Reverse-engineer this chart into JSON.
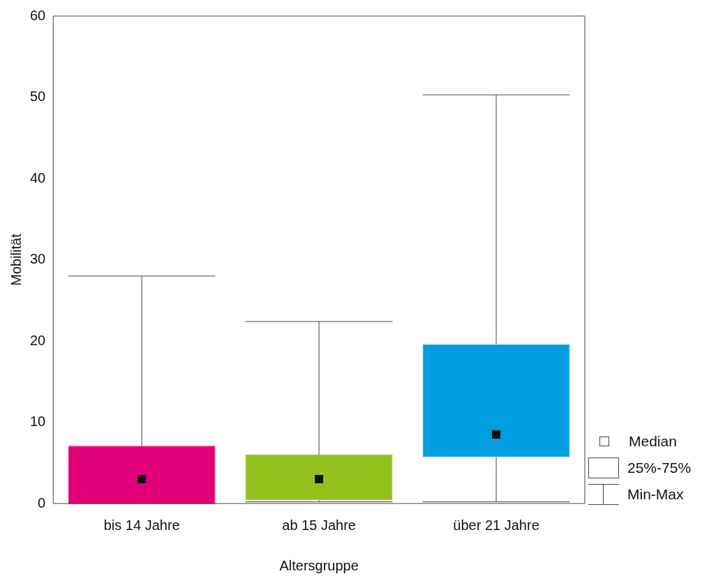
{
  "chart_data": {
    "type": "box",
    "xlabel": "Altersgruppe",
    "ylabel": "Mobilität",
    "categories": [
      "bis 14 Jahre",
      "ab 15 Jahre",
      "über 21 Jahre"
    ],
    "colors": [
      "#e2007a",
      "#95c11f",
      "#009ee0"
    ],
    "boxes": [
      {
        "low": 0,
        "q1": 0,
        "median": 3,
        "q3": 7.1,
        "high": 28
      },
      {
        "low": 0.2,
        "q1": 0.4,
        "median": 3,
        "q3": 6,
        "high": 22.4
      },
      {
        "low": 0.2,
        "q1": 5.7,
        "median": 8.5,
        "q3": 19.6,
        "high": 50.3
      }
    ],
    "ylim": [
      0,
      60
    ],
    "yticks": [
      0,
      10,
      20,
      30,
      40,
      50,
      60
    ],
    "annotations": [
      "Median",
      "25%-75%",
      "Min-Max"
    ]
  }
}
